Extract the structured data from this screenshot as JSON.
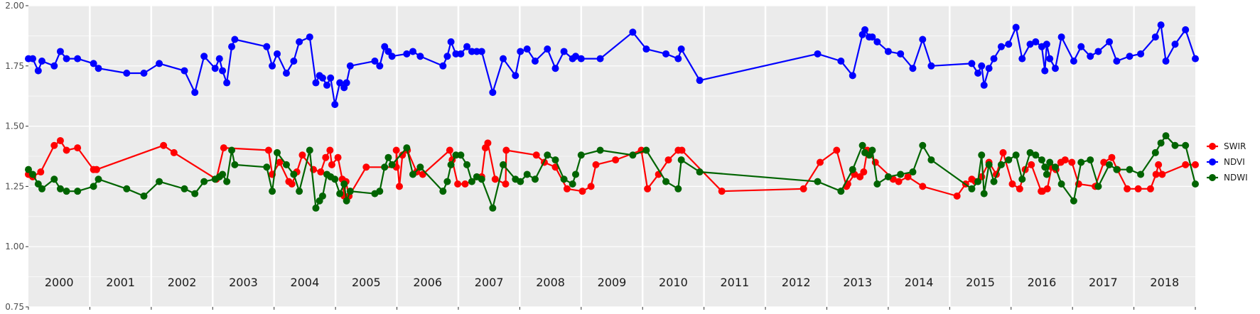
{
  "chart_data": {
    "type": "line",
    "title": "",
    "xlabel": "",
    "ylabel": "",
    "xlim": [
      2000.0,
      2019.0
    ],
    "ylim": [
      0.75,
      2.0
    ],
    "y_ticks": [
      "0.75",
      "1.00",
      "1.25",
      "1.50",
      "1.75",
      "2.00"
    ],
    "year_labels": [
      "2000",
      "2001",
      "2002",
      "2003",
      "2004",
      "2005",
      "2006",
      "2007",
      "2008",
      "2009",
      "2010",
      "2011",
      "2012",
      "2013",
      "2014",
      "2015",
      "2016",
      "2017",
      "2018"
    ],
    "grid": true,
    "legend_position": "right",
    "series": [
      {
        "name": "SWIR",
        "color": "#ff0000",
        "x": [
          2000.0,
          2000.07,
          2000.2,
          2000.42,
          2000.52,
          2000.62,
          2000.8,
          2001.06,
          2001.11,
          2002.2,
          2002.37,
          2003.06,
          2003.18,
          2003.91,
          2004.09,
          2004.24,
          2003.97,
          2004.29,
          2005.11,
          2004.37,
          2004.46,
          2004.64,
          2004.76,
          2004.94,
          2004.84,
          2004.91,
          2005.04,
          2005.14,
          2005.22,
          2005.17,
          2005.5,
          2005.99,
          2006.09,
          2006.17,
          2005.99,
          2006.04,
          2006.32,
          2006.42,
          2006.86,
          2006.9,
          2006.99,
          2007.11,
          2007.38,
          2007.44,
          2007.78,
          2007.48,
          2007.6,
          2007.77,
          2008.27,
          2008.4,
          2008.58,
          2008.77,
          2009.02,
          2009.16,
          2009.24,
          2009.56,
          2009.98,
          2010.08,
          2010.26,
          2010.42,
          2010.58,
          2010.64,
          2011.29,
          2012.62,
          2012.89,
          2013.16,
          2013.32,
          2013.34,
          2013.45,
          2013.54,
          2013.6,
          2013.66,
          2013.79,
          2014.08,
          2014.17,
          2014.32,
          2014.56,
          2015.12,
          2015.26,
          2015.36,
          2015.42,
          2015.52,
          2015.64,
          2015.76,
          2015.87,
          2016.02,
          2016.14,
          2016.23,
          2016.33,
          2016.49,
          2016.51,
          2016.59,
          2016.66,
          2016.73,
          2016.81,
          2016.88,
          2016.99,
          2017.1,
          2017.37,
          2017.51,
          2017.64,
          2017.73,
          2017.89,
          2018.07,
          2018.27,
          2018.36,
          2018.4,
          2018.46,
          2018.84,
          2019.0
        ],
        "y": [
          1.3,
          1.29,
          1.31,
          1.42,
          1.44,
          1.4,
          1.41,
          1.32,
          1.32,
          1.42,
          1.39,
          1.28,
          1.41,
          1.4,
          1.35,
          1.27,
          1.3,
          1.26,
          1.28,
          1.31,
          1.38,
          1.32,
          1.31,
          1.34,
          1.37,
          1.4,
          1.37,
          1.21,
          1.21,
          1.27,
          1.33,
          1.33,
          1.38,
          1.4,
          1.4,
          1.25,
          1.31,
          1.3,
          1.4,
          1.36,
          1.26,
          1.26,
          1.29,
          1.41,
          1.4,
          1.43,
          1.28,
          1.26,
          1.38,
          1.35,
          1.33,
          1.24,
          1.23,
          1.25,
          1.34,
          1.36,
          1.4,
          1.24,
          1.3,
          1.36,
          1.4,
          1.4,
          1.23,
          1.24,
          1.35,
          1.4,
          1.25,
          1.26,
          1.3,
          1.29,
          1.31,
          1.4,
          1.35,
          1.28,
          1.27,
          1.29,
          1.25,
          1.21,
          1.26,
          1.28,
          1.27,
          1.29,
          1.35,
          1.3,
          1.39,
          1.26,
          1.24,
          1.32,
          1.34,
          1.23,
          1.23,
          1.24,
          1.33,
          1.32,
          1.35,
          1.36,
          1.35,
          1.26,
          1.25,
          1.35,
          1.37,
          1.32,
          1.24,
          1.24,
          1.24,
          1.3,
          1.34,
          1.3,
          1.34,
          1.34
        ]
      },
      {
        "name": "NDVI",
        "color": "#0000ff",
        "x": [
          2000.0,
          2000.07,
          2000.16,
          2000.22,
          2000.42,
          2000.52,
          2000.62,
          2000.8,
          2001.06,
          2001.14,
          2001.6,
          2001.88,
          2002.13,
          2002.54,
          2002.71,
          2002.86,
          2003.04,
          2003.11,
          2003.16,
          2003.23,
          2003.31,
          2003.36,
          2003.88,
          2003.97,
          2004.05,
          2004.2,
          2004.32,
          2004.41,
          2004.58,
          2004.68,
          2004.74,
          2004.79,
          2004.86,
          2004.92,
          2004.99,
          2005.07,
          2005.14,
          2005.18,
          2005.24,
          2005.64,
          2005.72,
          2005.8,
          2005.86,
          2005.92,
          2006.16,
          2006.26,
          2006.38,
          2006.75,
          2006.82,
          2006.88,
          2006.96,
          2007.04,
          2007.14,
          2007.22,
          2007.3,
          2007.38,
          2007.56,
          2007.73,
          2007.93,
          2008.01,
          2008.12,
          2008.25,
          2008.45,
          2008.58,
          2008.72,
          2008.86,
          2008.91,
          2009.0,
          2009.31,
          2009.84,
          2010.06,
          2010.38,
          2010.58,
          2010.63,
          2010.93,
          2012.85,
          2013.23,
          2013.42,
          2013.58,
          2013.62,
          2013.69,
          2013.74,
          2013.82,
          2014.0,
          2014.2,
          2014.4,
          2014.56,
          2014.7,
          2015.36,
          2015.46,
          2015.52,
          2015.56,
          2015.64,
          2015.72,
          2015.84,
          2015.96,
          2016.08,
          2016.18,
          2016.31,
          2016.4,
          2016.5,
          2016.55,
          2016.58,
          2016.63,
          2016.72,
          2016.82,
          2017.02,
          2017.14,
          2017.29,
          2017.42,
          2017.6,
          2017.72,
          2017.93,
          2018.11,
          2018.35,
          2018.44,
          2018.52,
          2018.67,
          2018.84,
          2019.0
        ],
        "y": [
          1.78,
          1.78,
          1.73,
          1.77,
          1.75,
          1.81,
          1.78,
          1.78,
          1.76,
          1.74,
          1.72,
          1.72,
          1.76,
          1.73,
          1.64,
          1.79,
          1.74,
          1.78,
          1.73,
          1.68,
          1.83,
          1.86,
          1.83,
          1.75,
          1.8,
          1.72,
          1.77,
          1.85,
          1.87,
          1.68,
          1.71,
          1.7,
          1.67,
          1.7,
          1.59,
          1.68,
          1.66,
          1.68,
          1.75,
          1.77,
          1.75,
          1.83,
          1.81,
          1.79,
          1.8,
          1.81,
          1.79,
          1.75,
          1.79,
          1.85,
          1.8,
          1.8,
          1.83,
          1.81,
          1.81,
          1.81,
          1.64,
          1.78,
          1.71,
          1.81,
          1.82,
          1.77,
          1.82,
          1.74,
          1.81,
          1.78,
          1.79,
          1.78,
          1.78,
          1.89,
          1.82,
          1.8,
          1.78,
          1.82,
          1.69,
          1.8,
          1.77,
          1.71,
          1.88,
          1.9,
          1.87,
          1.87,
          1.85,
          1.81,
          1.8,
          1.74,
          1.86,
          1.75,
          1.76,
          1.72,
          1.75,
          1.67,
          1.74,
          1.78,
          1.83,
          1.84,
          1.91,
          1.78,
          1.84,
          1.85,
          1.83,
          1.73,
          1.84,
          1.78,
          1.74,
          1.87,
          1.77,
          1.83,
          1.79,
          1.81,
          1.85,
          1.77,
          1.79,
          1.8,
          1.87,
          1.92,
          1.77,
          1.84,
          1.9,
          1.78
        ]
      },
      {
        "name": "NDWI",
        "color": "#006400",
        "x": [
          2000.0,
          2000.07,
          2000.16,
          2000.22,
          2000.42,
          2000.52,
          2000.62,
          2000.8,
          2001.06,
          2001.14,
          2001.6,
          2001.88,
          2002.13,
          2002.54,
          2002.71,
          2002.86,
          2003.04,
          2003.11,
          2003.16,
          2003.23,
          2003.31,
          2003.36,
          2003.88,
          2003.97,
          2004.05,
          2004.2,
          2004.32,
          2004.41,
          2004.58,
          2004.68,
          2004.74,
          2004.79,
          2004.86,
          2004.92,
          2004.99,
          2005.07,
          2005.14,
          2005.18,
          2005.24,
          2005.64,
          2005.72,
          2005.8,
          2005.86,
          2005.92,
          2006.16,
          2006.26,
          2006.38,
          2006.75,
          2006.82,
          2006.88,
          2006.96,
          2007.04,
          2007.14,
          2007.22,
          2007.3,
          2007.38,
          2007.56,
          2007.73,
          2007.93,
          2008.01,
          2008.12,
          2008.25,
          2008.45,
          2008.58,
          2008.72,
          2008.86,
          2008.91,
          2009.0,
          2009.31,
          2009.84,
          2010.06,
          2010.38,
          2010.58,
          2010.63,
          2010.93,
          2012.85,
          2013.23,
          2013.42,
          2013.58,
          2013.62,
          2013.69,
          2013.74,
          2013.82,
          2014.0,
          2014.2,
          2014.4,
          2014.56,
          2014.7,
          2015.36,
          2015.46,
          2015.52,
          2015.56,
          2015.64,
          2015.72,
          2015.84,
          2015.96,
          2016.08,
          2016.18,
          2016.31,
          2016.4,
          2016.5,
          2016.55,
          2016.58,
          2016.63,
          2016.72,
          2016.82,
          2017.02,
          2017.14,
          2017.29,
          2017.42,
          2017.6,
          2017.72,
          2017.93,
          2018.11,
          2018.35,
          2018.44,
          2018.52,
          2018.67,
          2018.84,
          2019.0
        ],
        "y": [
          1.32,
          1.3,
          1.26,
          1.24,
          1.28,
          1.24,
          1.23,
          1.23,
          1.25,
          1.28,
          1.24,
          1.21,
          1.27,
          1.24,
          1.22,
          1.27,
          1.28,
          1.29,
          1.3,
          1.27,
          1.4,
          1.34,
          1.33,
          1.23,
          1.39,
          1.34,
          1.3,
          1.23,
          1.4,
          1.16,
          1.19,
          1.21,
          1.3,
          1.29,
          1.28,
          1.22,
          1.26,
          1.19,
          1.23,
          1.22,
          1.23,
          1.33,
          1.37,
          1.34,
          1.41,
          1.3,
          1.33,
          1.23,
          1.27,
          1.34,
          1.38,
          1.38,
          1.34,
          1.27,
          1.29,
          1.28,
          1.16,
          1.34,
          1.28,
          1.27,
          1.3,
          1.28,
          1.38,
          1.36,
          1.28,
          1.26,
          1.3,
          1.38,
          1.4,
          1.38,
          1.4,
          1.27,
          1.24,
          1.36,
          1.31,
          1.27,
          1.23,
          1.32,
          1.42,
          1.39,
          1.38,
          1.4,
          1.26,
          1.29,
          1.3,
          1.31,
          1.42,
          1.36,
          1.24,
          1.27,
          1.38,
          1.22,
          1.34,
          1.27,
          1.34,
          1.36,
          1.38,
          1.28,
          1.39,
          1.38,
          1.36,
          1.33,
          1.3,
          1.35,
          1.33,
          1.26,
          1.19,
          1.35,
          1.36,
          1.25,
          1.34,
          1.32,
          1.32,
          1.3,
          1.39,
          1.43,
          1.46,
          1.42,
          1.42,
          1.26
        ]
      }
    ]
  }
}
